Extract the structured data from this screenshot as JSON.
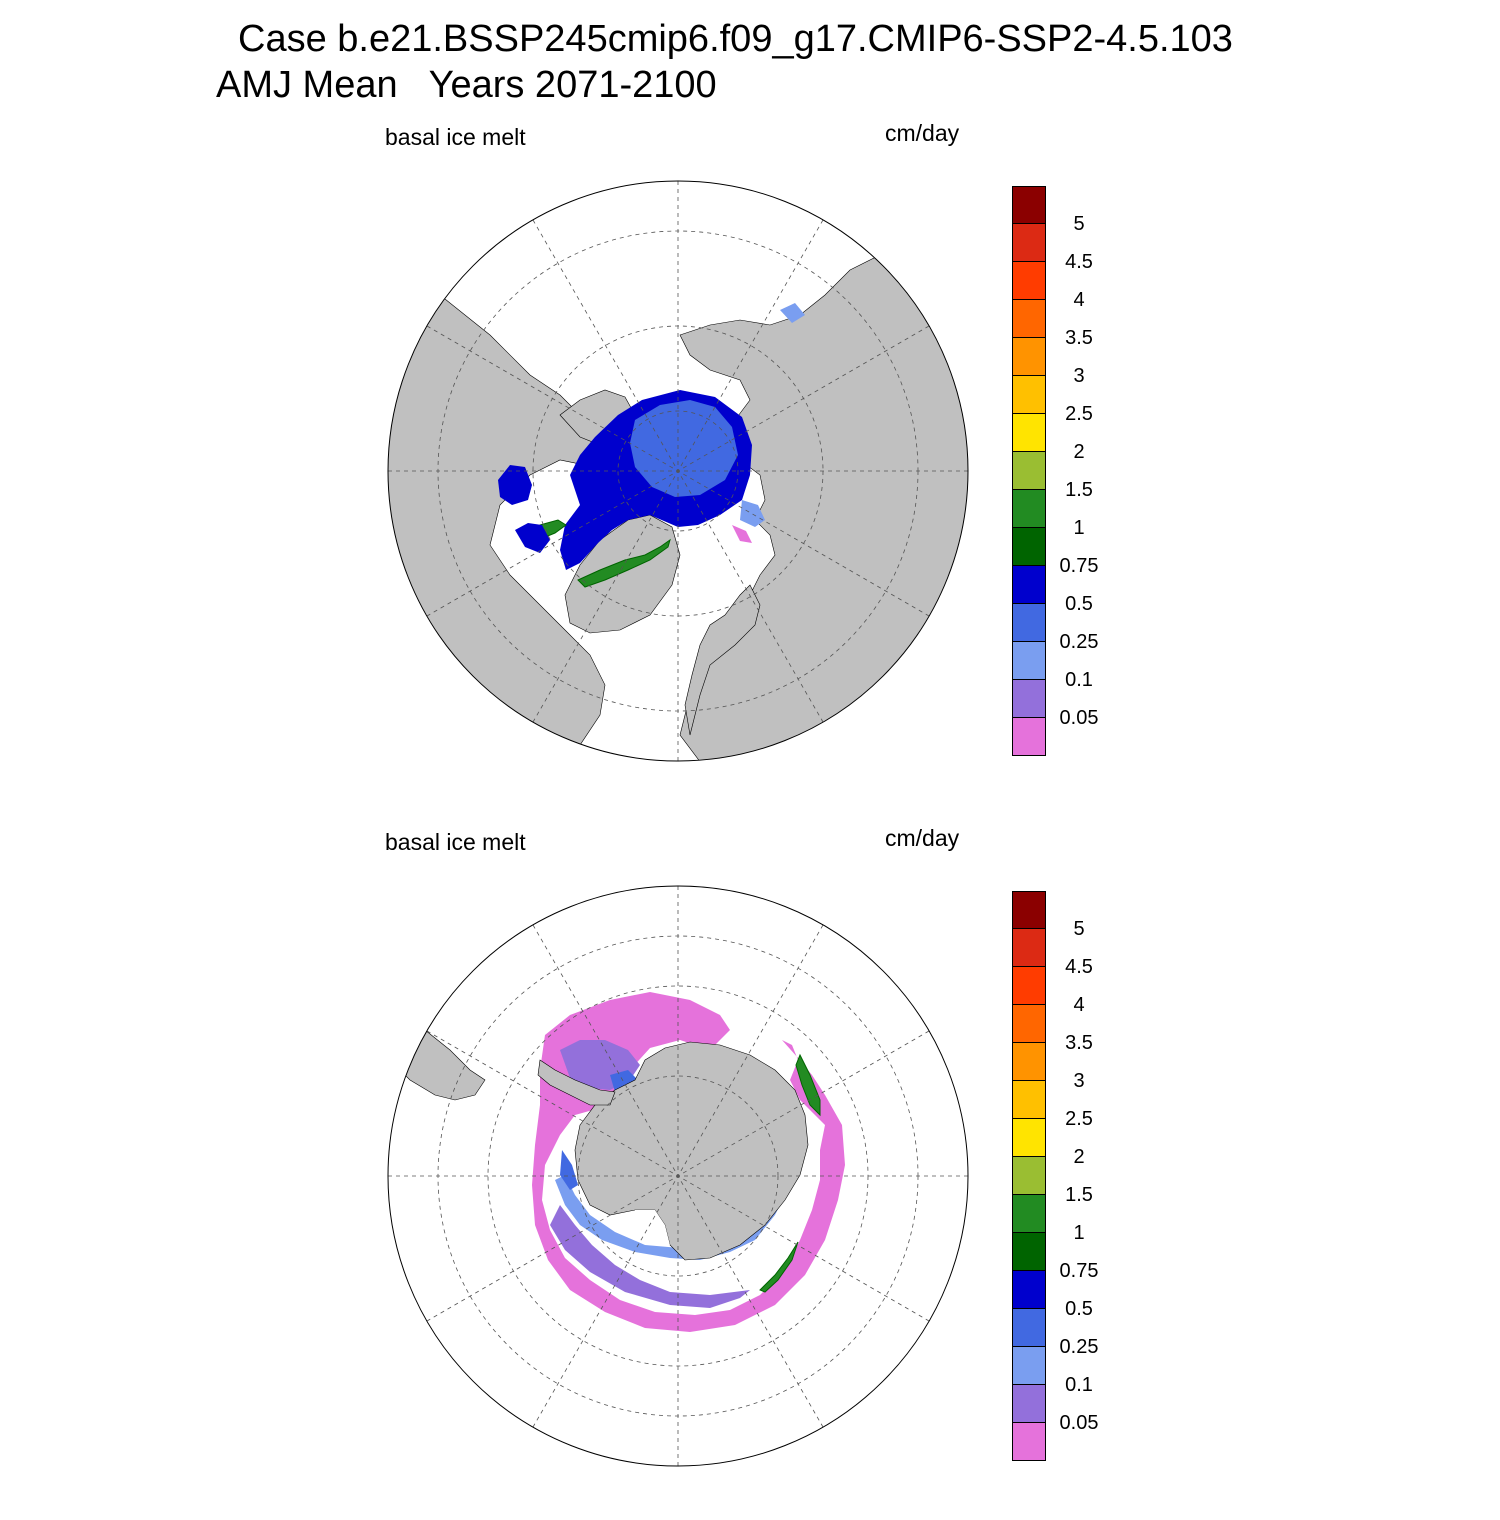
{
  "header": {
    "title_line1": "Case b.e21.BSSP245cmip6.f09_g17.CMIP6-SSP2-4.5.103",
    "title_line2": "AMJ Mean   Years 2071-2100"
  },
  "panels": [
    {
      "id": "north",
      "variable": "basal ice melt",
      "units": "cm/day",
      "hemisphere": "Northern Hemisphere polar stereographic"
    },
    {
      "id": "south",
      "variable": "basal ice melt",
      "units": "cm/day",
      "hemisphere": "Southern Hemisphere polar stereographic"
    }
  ],
  "colorbar": {
    "levels": [
      "5",
      "4.5",
      "4",
      "3.5",
      "3",
      "2.5",
      "2",
      "1.5",
      "1",
      "0.75",
      "0.5",
      "0.25",
      "0.1",
      "0.05"
    ],
    "colors": [
      "#8B0000",
      "#DC2A14",
      "#FF3C00",
      "#FF6600",
      "#FF9300",
      "#FFC000",
      "#FFE400",
      "#9ABE32",
      "#228B22",
      "#006400",
      "#0000CD",
      "#4169E1",
      "#7A9EF0",
      "#9370DB",
      "#E572DB"
    ]
  },
  "colors": {
    "land": "#C0C0C0",
    "ocean": "#FFFFFF",
    "graticule": "#555555"
  }
}
